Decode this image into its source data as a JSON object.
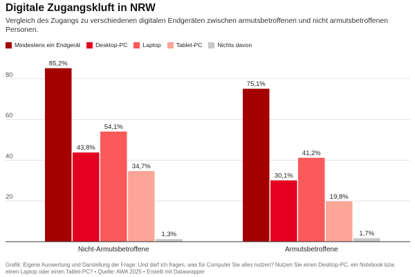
{
  "header": {
    "title": "Digitale Zugangskluft in NRW",
    "subtitle": "Vergleich des Zugangs zu verschiedenen digitalen Endgeräten zwischen armutsbetroffenen und nicht armutsbetroffenen Personen."
  },
  "footer": {
    "note": "Grafik: Eigene Auswertung und Darstellung der Frage: Und darf ich fragen, was für Computer Sie alles nutzen? Nutzen Sie einen Desktop-PC, ein Notebook bzw. einen Laptop oder einen Tablet-PC? • Quelle: AWA 2025 • Erstellt mit Datawrapper"
  },
  "chart_data": {
    "type": "bar",
    "title": "Digitale Zugangskluft in NRW",
    "categories": [
      "Nicht-Armutsbetroffene",
      "Armutsbetroffene"
    ],
    "series": [
      {
        "name": "Mindestens ein Endgerät",
        "color": "#a50000",
        "values": [
          85.2,
          75.1
        ],
        "labels": [
          "85,2%",
          "75,1%"
        ]
      },
      {
        "name": "Desktop-PC",
        "color": "#e30020",
        "values": [
          43.8,
          30.1
        ],
        "labels": [
          "43,8%",
          "30,1%"
        ]
      },
      {
        "name": "Laptop",
        "color": "#fa5a5a",
        "values": [
          54.1,
          41.2
        ],
        "labels": [
          "54,1%",
          "41,2%"
        ]
      },
      {
        "name": "Tablet-PC",
        "color": "#fca598",
        "values": [
          34.7,
          19.8
        ],
        "labels": [
          "34,7%",
          "19,8%"
        ]
      },
      {
        "name": "Nichts davon",
        "color": "#c8c8c8",
        "values": [
          1.3,
          1.7
        ],
        "labels": [
          "1,3%",
          "1,7%"
        ]
      }
    ],
    "yticks": [
      "20",
      "40",
      "60",
      "80"
    ],
    "ylim": [
      0,
      90
    ],
    "xlabel": "",
    "ylabel": "",
    "grid": true,
    "legend": "top-left"
  }
}
